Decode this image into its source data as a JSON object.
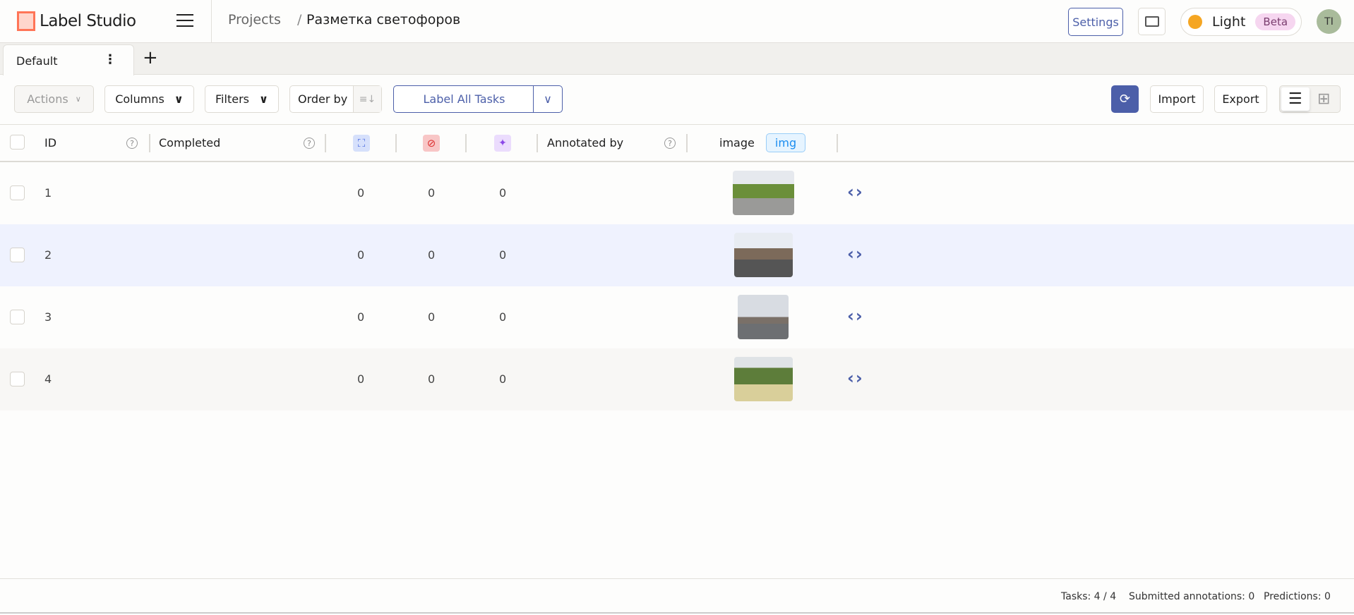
{
  "header": {
    "app_name": "Label Studio",
    "breadcrumb": {
      "root": "Projects",
      "separator": "/",
      "current": "Разметка светофоров"
    },
    "settings_label": "Settings",
    "theme_label": "Light",
    "theme_badge": "Beta",
    "avatar_initials": "TI"
  },
  "tabs": [
    {
      "label": "Default"
    }
  ],
  "toolbar": {
    "actions": "Actions",
    "columns": "Columns",
    "filters": "Filters",
    "order_by": "Order by",
    "label_all": "Label All Tasks",
    "import": "Import",
    "export": "Export"
  },
  "table": {
    "columns": {
      "id": "ID",
      "completed": "Completed",
      "annotated_by": "Annotated by",
      "image": "image",
      "image_badge": "img"
    },
    "rows": [
      {
        "id": "1",
        "total": "0",
        "cancelled": "0",
        "predictions": "0"
      },
      {
        "id": "2",
        "total": "0",
        "cancelled": "0",
        "predictions": "0"
      },
      {
        "id": "3",
        "total": "0",
        "cancelled": "0",
        "predictions": "0"
      },
      {
        "id": "4",
        "total": "0",
        "cancelled": "0",
        "predictions": "0"
      }
    ]
  },
  "footer": {
    "tasks": "Tasks: 4 / 4",
    "submitted": "Submitted annotations: 0",
    "predictions": "Predictions: 0"
  },
  "colors": {
    "accent": "#4c5fa9",
    "logo": "#ff7557",
    "hover_row": "#eff2fe"
  }
}
